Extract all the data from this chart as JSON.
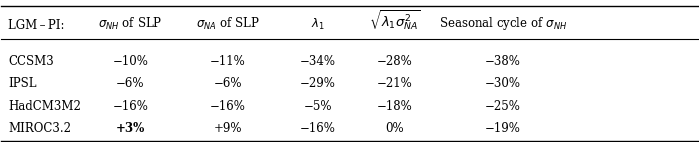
{
  "rows": [
    [
      "CCSM3",
      "−10%",
      "−11%",
      "−34%",
      "−28%",
      "−38%"
    ],
    [
      "IPSL",
      "−6%",
      "−6%",
      "−29%",
      "−21%",
      "−30%"
    ],
    [
      "HadCM3M2",
      "−16%",
      "−16%",
      "−5%",
      "−18%",
      "−25%"
    ],
    [
      "MIROC3.2",
      "+3%",
      "+9%",
      "−16%",
      "0%",
      "−19%"
    ]
  ],
  "bold_cell": [
    3,
    1
  ],
  "background_color": "#ffffff",
  "text_color": "#000000",
  "line_color": "#000000",
  "figsize": [
    6.99,
    1.42
  ],
  "dpi": 100
}
